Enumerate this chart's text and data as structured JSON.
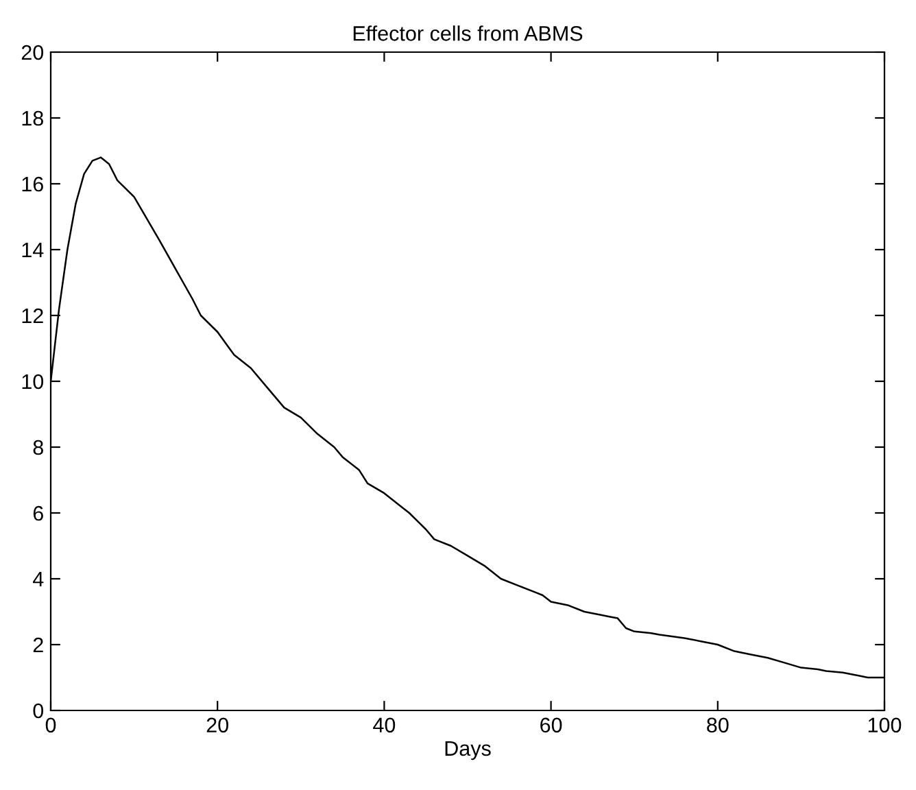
{
  "chart_data": {
    "type": "line",
    "title": "Effector cells from ABMS",
    "xlabel": "Days",
    "xlim": [
      0,
      100
    ],
    "xticks": [
      0,
      20,
      40,
      60,
      80,
      100
    ],
    "ylim": [
      0,
      20
    ],
    "yticks": [
      0,
      2,
      4,
      6,
      8,
      10,
      12,
      14,
      16,
      18,
      20
    ],
    "grid": false,
    "series": [
      {
        "color": "#000000",
        "x": [
          0,
          1,
          2,
          3,
          4,
          5,
          6,
          7,
          8,
          10,
          13,
          15,
          17,
          18,
          20,
          22,
          24,
          26,
          28,
          30,
          32,
          34,
          35,
          37,
          38,
          40,
          42,
          43,
          45,
          46,
          48,
          50,
          52,
          54,
          56,
          58,
          59,
          60,
          62,
          64,
          66,
          67,
          68,
          69,
          70,
          72,
          73,
          76,
          78,
          80,
          82,
          84,
          86,
          88,
          90,
          92,
          93,
          95,
          97,
          98,
          100
        ],
        "values": [
          10.0,
          12.2,
          14.0,
          15.4,
          16.3,
          16.7,
          16.8,
          16.6,
          16.1,
          15.6,
          14.3,
          13.4,
          12.5,
          12.0,
          11.5,
          10.8,
          10.4,
          9.8,
          9.2,
          8.9,
          8.4,
          8.0,
          7.7,
          7.3,
          6.9,
          6.6,
          6.2,
          6.0,
          5.5,
          5.2,
          5.0,
          4.7,
          4.4,
          4.0,
          3.8,
          3.6,
          3.5,
          3.3,
          3.2,
          3.0,
          2.9,
          2.85,
          2.8,
          2.5,
          2.4,
          2.35,
          2.3,
          2.2,
          2.1,
          2.0,
          1.8,
          1.7,
          1.6,
          1.45,
          1.3,
          1.25,
          1.2,
          1.15,
          1.05,
          1.0,
          1.0
        ]
      }
    ]
  }
}
